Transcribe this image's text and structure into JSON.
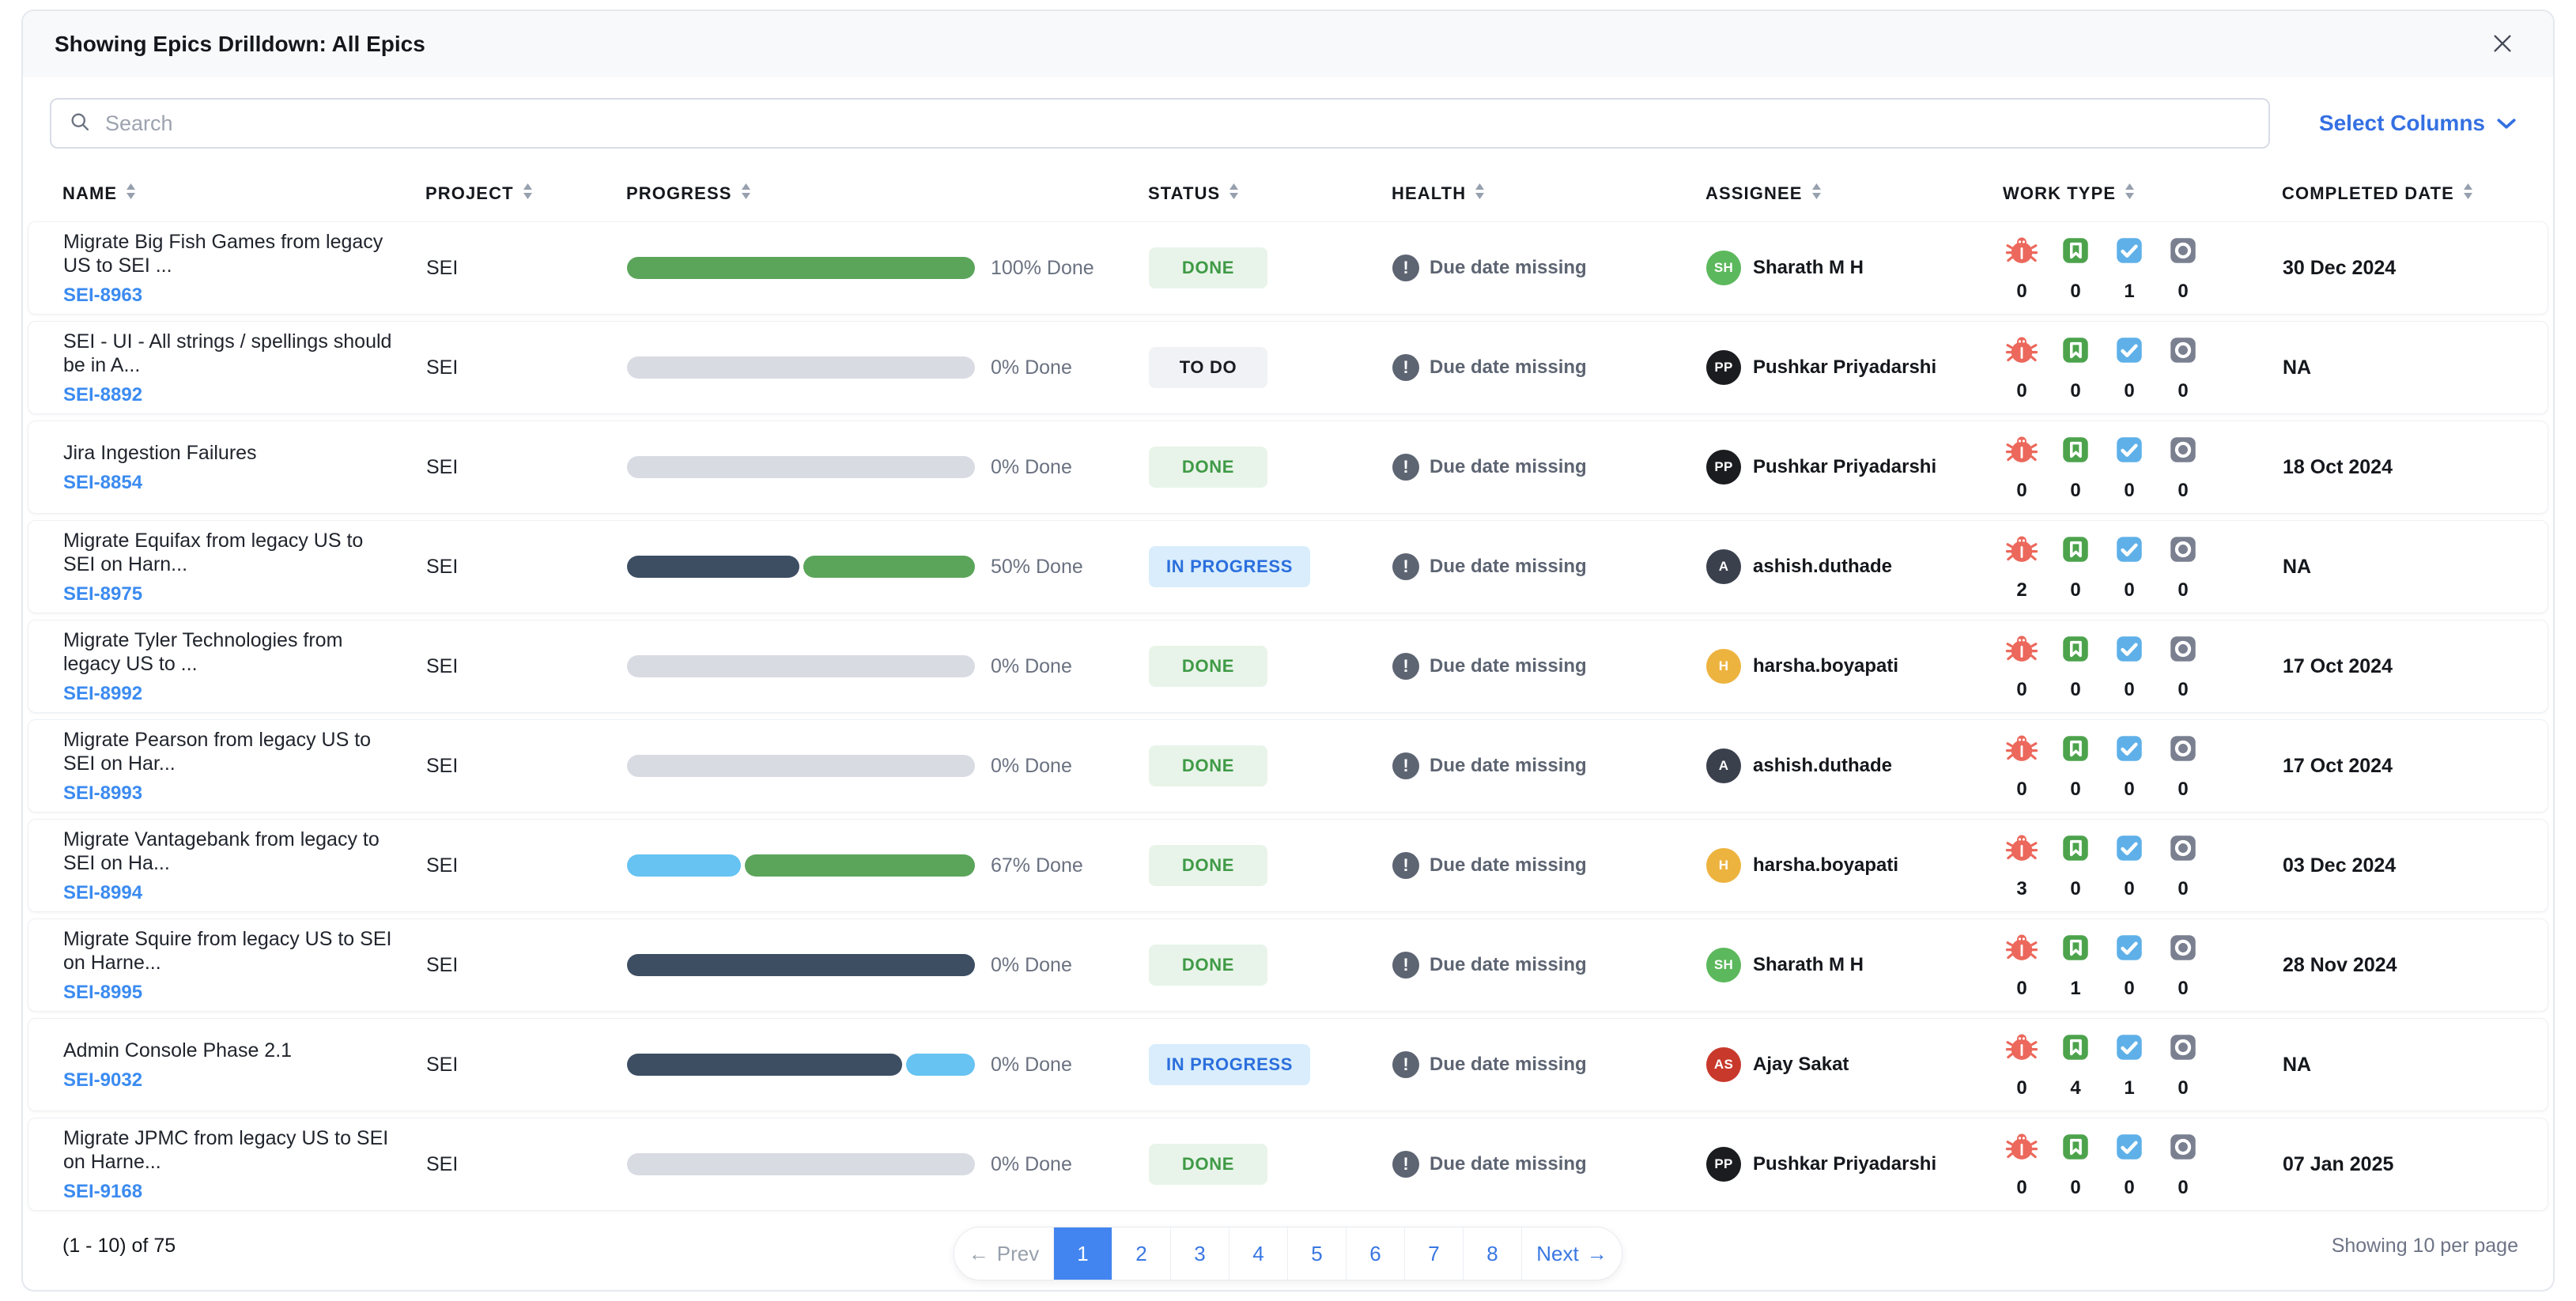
{
  "panel": {
    "title": "Showing Epics Drilldown: All Epics"
  },
  "search": {
    "placeholder": "Search"
  },
  "toolbar": {
    "select_columns_label": "Select Columns"
  },
  "colors": {
    "accent_blue": "#3470e2",
    "link_blue": "#3b8bf0",
    "progress_green": "#5ba55b",
    "progress_gray": "#d9dbe3",
    "progress_navy": "#3d4e63",
    "progress_lightblue": "#66c3f2",
    "status_done_bg": "#e8f4e9",
    "status_done_text": "#3f9a46",
    "status_todo_bg": "#f1f2f6",
    "status_todo_text": "#191c22",
    "status_inprogress_bg": "#d9edfc",
    "status_inprogress_text": "#2b6fdd",
    "pagination_active_bg": "#4285f0",
    "health_gray": "#5d6472"
  },
  "table": {
    "columns": [
      {
        "label": "NAME"
      },
      {
        "label": "PROJECT"
      },
      {
        "label": "PROGRESS"
      },
      {
        "label": "STATUS"
      },
      {
        "label": "HEALTH"
      },
      {
        "label": "ASSIGNEE"
      },
      {
        "label": "WORK TYPE"
      },
      {
        "label": "COMPLETED DATE"
      }
    ],
    "work_type_icons": [
      {
        "name": "bug-icon",
        "color": "#ec685c"
      },
      {
        "name": "story-icon",
        "color": "#4ca34c"
      },
      {
        "name": "task-icon",
        "color": "#5fb0e8"
      },
      {
        "name": "other-icon",
        "color": "#7a8090"
      }
    ],
    "rows": [
      {
        "name": "Migrate Big Fish Games from legacy US to SEI ...",
        "key": "SEI-8963",
        "project": "SEI",
        "progress": {
          "label": "100% Done",
          "segments": [
            {
              "color": "#5ba55b",
              "pct": 100
            }
          ]
        },
        "status": {
          "label": "DONE",
          "variant": "done"
        },
        "health": "Due date missing",
        "assignee": {
          "initials": "SH",
          "name": "Sharath M H",
          "color": "#5cb85c"
        },
        "work_type_counts": [
          0,
          0,
          1,
          0
        ],
        "completed": "30 Dec 2024"
      },
      {
        "name": "SEI - UI - All strings / spellings should be in A...",
        "key": "SEI-8892",
        "project": "SEI",
        "progress": {
          "label": "0% Done",
          "segments": [
            {
              "color": "#d9dbe3",
              "pct": 100
            }
          ]
        },
        "status": {
          "label": "TO DO",
          "variant": "todo"
        },
        "health": "Due date missing",
        "assignee": {
          "initials": "PP",
          "name": "Pushkar Priyadarshi",
          "color": "#1b1c20"
        },
        "work_type_counts": [
          0,
          0,
          0,
          0
        ],
        "completed": "NA"
      },
      {
        "name": "Jira Ingestion Failures",
        "key": "SEI-8854",
        "project": "SEI",
        "progress": {
          "label": "0% Done",
          "segments": [
            {
              "color": "#d9dbe3",
              "pct": 100
            }
          ]
        },
        "status": {
          "label": "DONE",
          "variant": "done"
        },
        "health": "Due date missing",
        "assignee": {
          "initials": "PP",
          "name": "Pushkar Priyadarshi",
          "color": "#1b1c20"
        },
        "work_type_counts": [
          0,
          0,
          0,
          0
        ],
        "completed": "18 Oct 2024"
      },
      {
        "name": "Migrate Equifax from legacy US to SEI on Harn...",
        "key": "SEI-8975",
        "project": "SEI",
        "progress": {
          "label": "50% Done",
          "segments": [
            {
              "color": "#3d4e63",
              "pct": 50
            },
            {
              "color": "#5ba55b",
              "pct": 50
            }
          ]
        },
        "status": {
          "label": "IN PROGRESS",
          "variant": "in-progress"
        },
        "health": "Due date missing",
        "assignee": {
          "initials": "A",
          "name": "ashish.duthade",
          "color": "#3b404d"
        },
        "work_type_counts": [
          2,
          0,
          0,
          0
        ],
        "completed": "NA"
      },
      {
        "name": "Migrate Tyler Technologies from legacy US to ...",
        "key": "SEI-8992",
        "project": "SEI",
        "progress": {
          "label": "0% Done",
          "segments": [
            {
              "color": "#d9dbe3",
              "pct": 100
            }
          ]
        },
        "status": {
          "label": "DONE",
          "variant": "done"
        },
        "health": "Due date missing",
        "assignee": {
          "initials": "H",
          "name": "harsha.boyapati",
          "color": "#edb33f"
        },
        "work_type_counts": [
          0,
          0,
          0,
          0
        ],
        "completed": "17 Oct 2024"
      },
      {
        "name": "Migrate Pearson from legacy US to SEI on Har...",
        "key": "SEI-8993",
        "project": "SEI",
        "progress": {
          "label": "0% Done",
          "segments": [
            {
              "color": "#d9dbe3",
              "pct": 100
            }
          ]
        },
        "status": {
          "label": "DONE",
          "variant": "done"
        },
        "health": "Due date missing",
        "assignee": {
          "initials": "A",
          "name": "ashish.duthade",
          "color": "#3b404d"
        },
        "work_type_counts": [
          0,
          0,
          0,
          0
        ],
        "completed": "17 Oct 2024"
      },
      {
        "name": "Migrate Vantagebank from legacy to SEI on Ha...",
        "key": "SEI-8994",
        "project": "SEI",
        "progress": {
          "label": "67% Done",
          "segments": [
            {
              "color": "#66c3f2",
              "pct": 33
            },
            {
              "color": "#5ba55b",
              "pct": 67
            }
          ]
        },
        "status": {
          "label": "DONE",
          "variant": "done"
        },
        "health": "Due date missing",
        "assignee": {
          "initials": "H",
          "name": "harsha.boyapati",
          "color": "#edb33f"
        },
        "work_type_counts": [
          3,
          0,
          0,
          0
        ],
        "completed": "03 Dec 2024"
      },
      {
        "name": "Migrate Squire from legacy US to SEI on Harne...",
        "key": "SEI-8995",
        "project": "SEI",
        "progress": {
          "label": "0% Done",
          "segments": [
            {
              "color": "#3d4e63",
              "pct": 100
            }
          ]
        },
        "status": {
          "label": "DONE",
          "variant": "done"
        },
        "health": "Due date missing",
        "assignee": {
          "initials": "SH",
          "name": "Sharath M H",
          "color": "#5cb85c"
        },
        "work_type_counts": [
          0,
          1,
          0,
          0
        ],
        "completed": "28 Nov 2024"
      },
      {
        "name": "Admin Console Phase 2.1",
        "key": "SEI-9032",
        "project": "SEI",
        "progress": {
          "label": "0% Done",
          "segments": [
            {
              "color": "#3d4e63",
              "pct": 80
            },
            {
              "color": "#66c3f2",
              "pct": 20
            }
          ]
        },
        "status": {
          "label": "IN PROGRESS",
          "variant": "in-progress"
        },
        "health": "Due date missing",
        "assignee": {
          "initials": "AS",
          "name": "Ajay Sakat",
          "color": "#c8392c"
        },
        "work_type_counts": [
          0,
          4,
          1,
          0
        ],
        "completed": "NA"
      },
      {
        "name": "Migrate JPMC from legacy US to SEI on Harne...",
        "key": "SEI-9168",
        "project": "SEI",
        "progress": {
          "label": "0% Done",
          "segments": [
            {
              "color": "#d9dbe3",
              "pct": 100
            }
          ]
        },
        "status": {
          "label": "DONE",
          "variant": "done"
        },
        "health": "Due date missing",
        "assignee": {
          "initials": "PP",
          "name": "Pushkar Priyadarshi",
          "color": "#1b1c20"
        },
        "work_type_counts": [
          0,
          0,
          0,
          0
        ],
        "completed": "07 Jan 2025"
      }
    ]
  },
  "pagination": {
    "prev_label": "Prev",
    "next_label": "Next",
    "prev_arrow": "←",
    "next_arrow": "→",
    "pages": [
      "1",
      "2",
      "3",
      "4",
      "5",
      "6",
      "7",
      "8"
    ],
    "active_page": "1"
  },
  "footer": {
    "range_text": "(1 - 10) of 75",
    "per_page_text": "Showing 10 per page"
  }
}
